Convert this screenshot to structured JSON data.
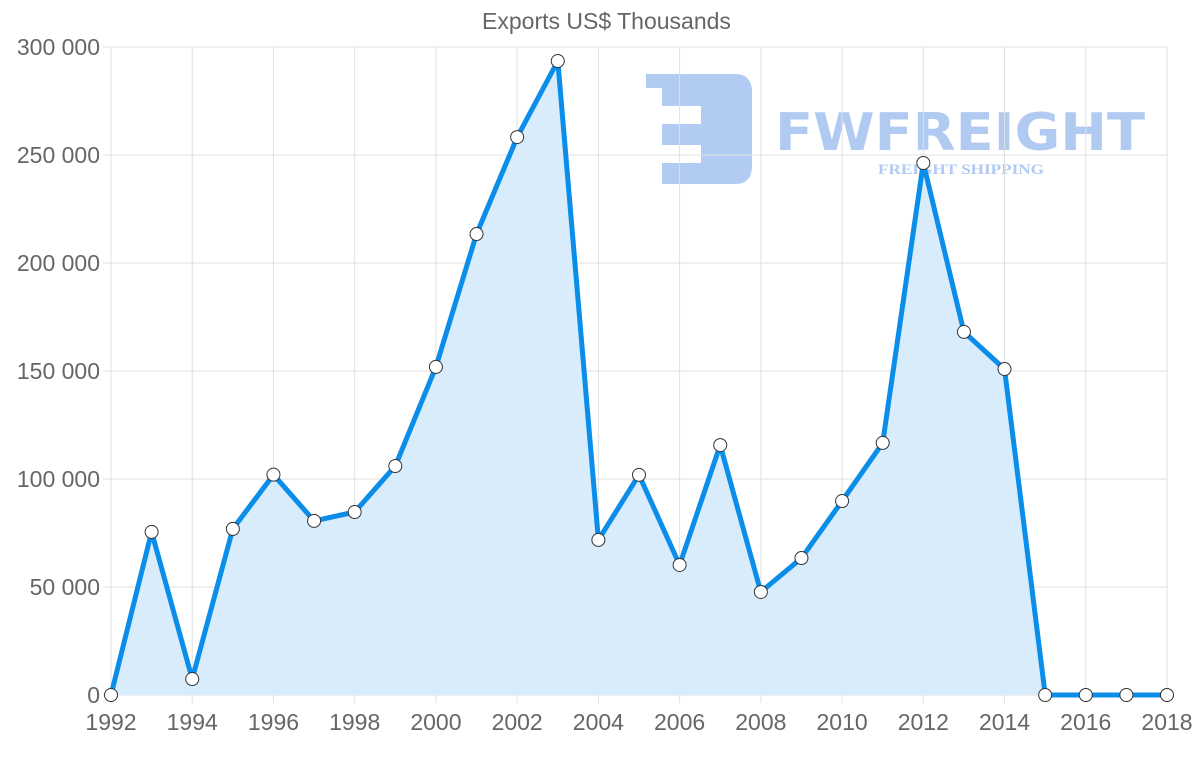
{
  "title": "Exports US$ Thousands",
  "watermark": {
    "brand": "FWFREIGHT",
    "tagline": "FREIGHT SHIPPING",
    "color": "#adc8f2"
  },
  "colors": {
    "line": "#0a8eea",
    "fill": "#d8ecfc",
    "point_fill": "#ffffff",
    "point_stroke": "#333333",
    "grid": "#e0e0e0",
    "text": "#666666"
  },
  "chart_data": {
    "type": "area",
    "title": "Exports US$ Thousands",
    "xlabel": "",
    "ylabel": "",
    "x": [
      1992,
      1993,
      1994,
      1995,
      1996,
      1997,
      1998,
      1999,
      2000,
      2001,
      2002,
      2003,
      2004,
      2005,
      2006,
      2007,
      2008,
      2009,
      2010,
      2011,
      2012,
      2013,
      2014,
      2015,
      2016,
      2017,
      2018
    ],
    "series": [
      {
        "name": "Exports US$ Thousands",
        "values": [
          0,
          75500,
          7400,
          76900,
          102000,
          80600,
          84700,
          106000,
          151900,
          213400,
          258300,
          293500,
          71800,
          101900,
          60200,
          115700,
          47700,
          63400,
          89800,
          116700,
          246300,
          168100,
          150900,
          0,
          0,
          0,
          0
        ]
      }
    ],
    "ylim": [
      0,
      300000
    ],
    "yticks": [
      0,
      50000,
      100000,
      150000,
      200000,
      250000,
      300000
    ],
    "ytick_labels": [
      "0",
      "50 000",
      "100 000",
      "150 000",
      "200 000",
      "250 000",
      "300 000"
    ],
    "xtick_labels": [
      "1992",
      "1994",
      "1996",
      "1998",
      "2000",
      "2002",
      "2004",
      "2006",
      "2008",
      "2010",
      "2012",
      "2014",
      "2016",
      "2018"
    ],
    "grid": true,
    "legend": "none"
  }
}
